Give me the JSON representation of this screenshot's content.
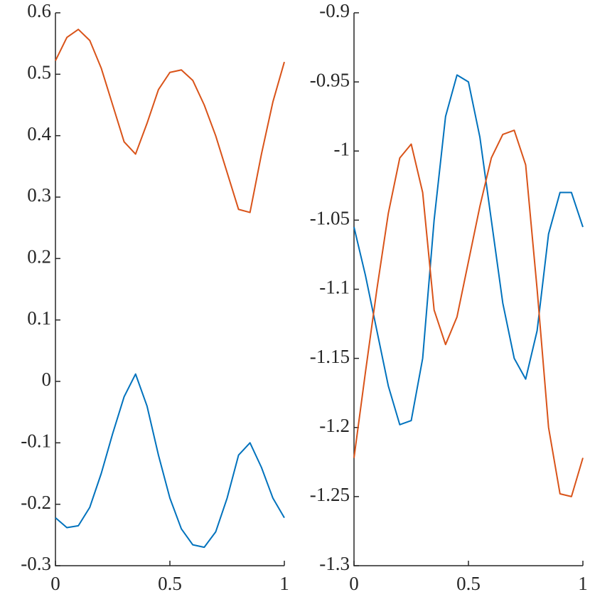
{
  "chart_data": [
    {
      "type": "line",
      "x": [
        0,
        0.05,
        0.1,
        0.15,
        0.2,
        0.25,
        0.3,
        0.35,
        0.4,
        0.45,
        0.5,
        0.55,
        0.6,
        0.65,
        0.7,
        0.75,
        0.8,
        0.85,
        0.9,
        0.95,
        1
      ],
      "series": [
        {
          "color": "#0072BD",
          "values": [
            -0.222,
            -0.238,
            -0.235,
            -0.205,
            -0.15,
            -0.085,
            -0.025,
            0.012,
            -0.04,
            -0.12,
            -0.19,
            -0.24,
            -0.266,
            -0.27,
            -0.245,
            -0.19,
            -0.12,
            -0.1,
            -0.14,
            -0.19,
            -0.222
          ]
        },
        {
          "color": "#D95319",
          "values": [
            0.522,
            0.56,
            0.573,
            0.555,
            0.51,
            0.45,
            0.39,
            0.37,
            0.42,
            0.475,
            0.503,
            0.507,
            0.49,
            0.45,
            0.4,
            0.34,
            0.28,
            0.275,
            0.37,
            0.455,
            0.52
          ]
        }
      ],
      "xlim": [
        0,
        1
      ],
      "xticks": [
        0,
        0.5,
        1
      ],
      "ylim": [
        -0.3,
        0.6
      ],
      "yticks": [
        0.6,
        0.5,
        0.4,
        0.3,
        0.2,
        0.1,
        0,
        -0.1,
        -0.2,
        -0.3
      ]
    },
    {
      "type": "line",
      "x": [
        0,
        0.05,
        0.1,
        0.15,
        0.2,
        0.25,
        0.3,
        0.35,
        0.4,
        0.45,
        0.5,
        0.55,
        0.6,
        0.65,
        0.7,
        0.75,
        0.8,
        0.85,
        0.9,
        0.95,
        1
      ],
      "series": [
        {
          "color": "#0072BD",
          "values": [
            -1.055,
            -1.09,
            -1.13,
            -1.17,
            -1.198,
            -1.195,
            -1.15,
            -1.05,
            -0.975,
            -0.945,
            -0.95,
            -0.99,
            -1.05,
            -1.11,
            -1.15,
            -1.165,
            -1.13,
            -1.06,
            -1.03,
            -1.03,
            -1.055
          ]
        },
        {
          "color": "#D95319",
          "values": [
            -1.222,
            -1.16,
            -1.1,
            -1.045,
            -1.005,
            -0.995,
            -1.03,
            -1.115,
            -1.14,
            -1.12,
            -1.08,
            -1.04,
            -1.005,
            -0.988,
            -0.985,
            -1.01,
            -1.1,
            -1.2,
            -1.248,
            -1.25,
            -1.222
          ]
        }
      ],
      "xlim": [
        0,
        1
      ],
      "xticks": [
        0,
        0.5,
        1
      ],
      "ylim": [
        -1.3,
        -0.9
      ],
      "yticks": [
        -0.9,
        -0.95,
        -1,
        -1.05,
        -1.1,
        -1.15,
        -1.2,
        -1.25,
        -1.3
      ]
    }
  ]
}
